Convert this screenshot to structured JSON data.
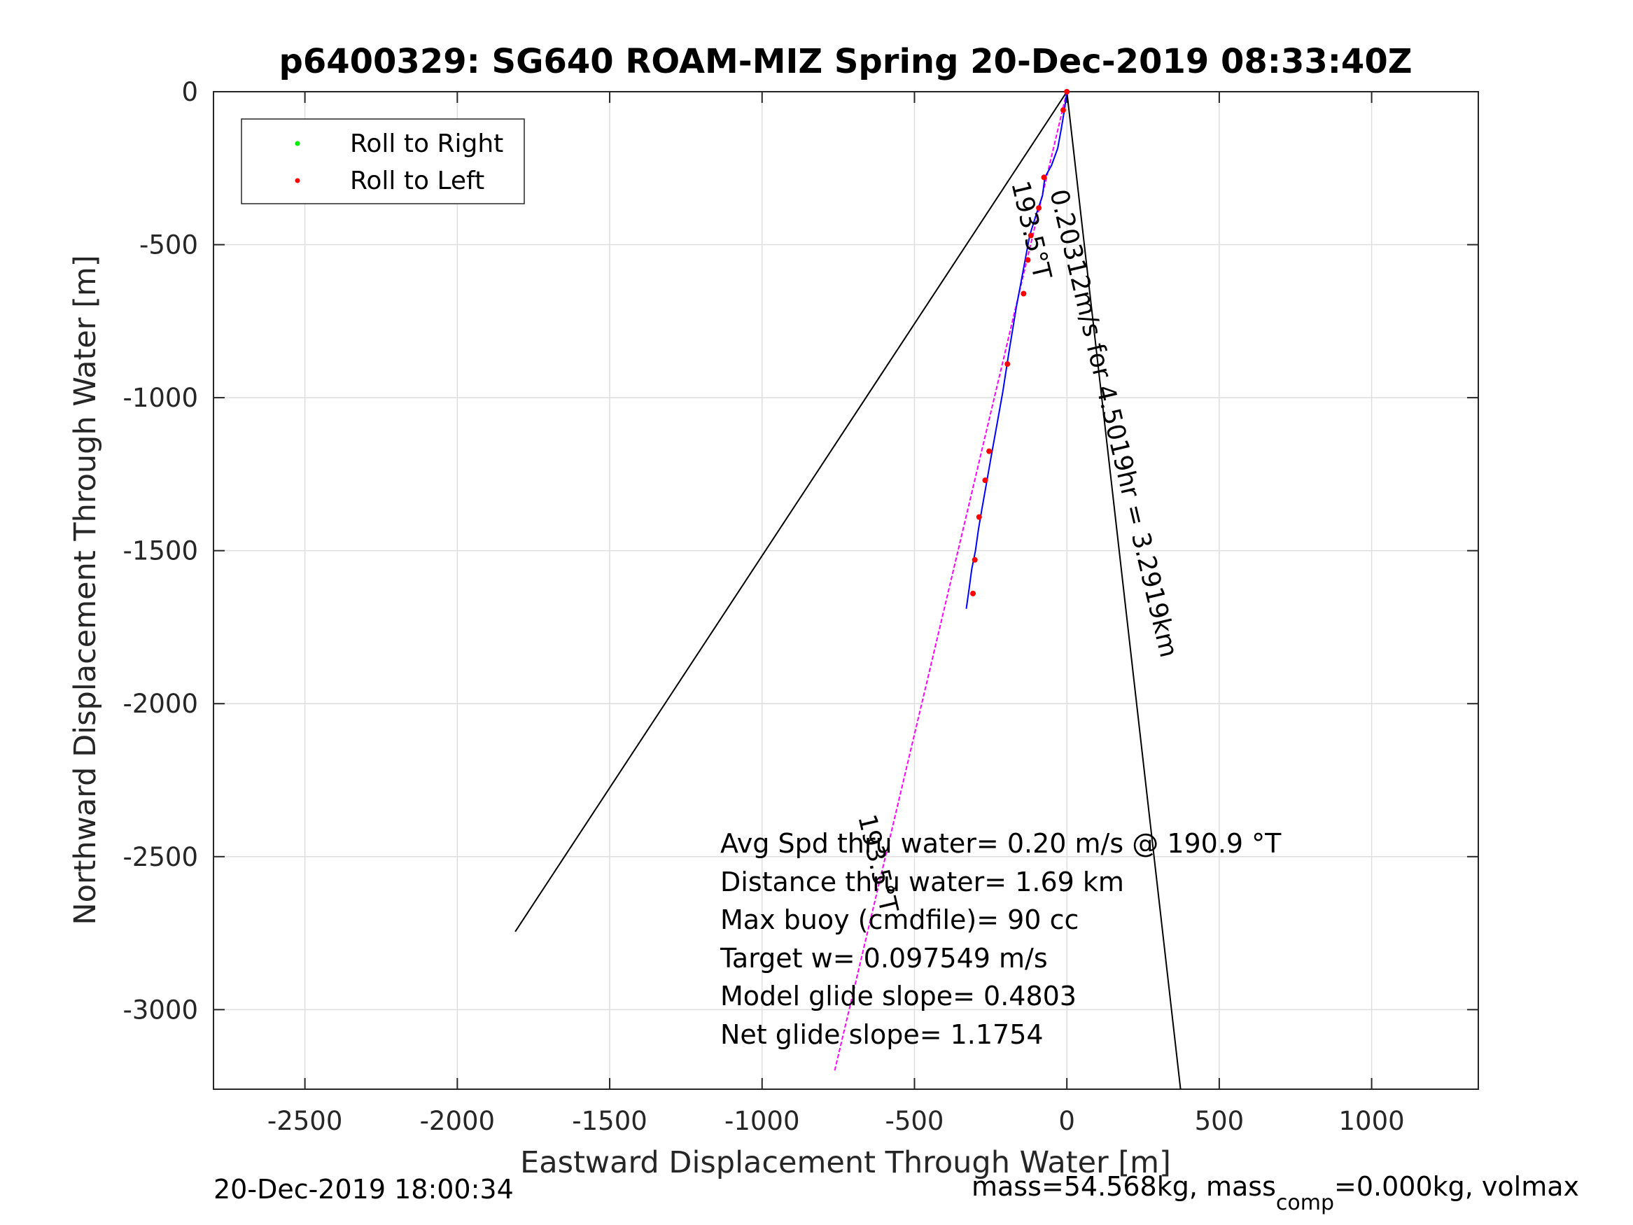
{
  "chart_data": {
    "type": "line",
    "title": "p6400329: SG640 ROAM-MIZ Spring 20-Dec-2019 08:33:40Z",
    "xlabel": "Eastward Displacement Through Water [m]",
    "ylabel": "Northward Displacement Through Water [m]",
    "xlim": [
      -2800,
      1350
    ],
    "ylim": [
      -3260,
      0
    ],
    "xticks": [
      -2500,
      -2000,
      -1500,
      -1000,
      -500,
      0,
      500,
      1000
    ],
    "yticks": [
      0,
      -500,
      -1000,
      -1500,
      -2000,
      -2500,
      -3000
    ],
    "grid": true,
    "legend": {
      "placement": "top-left",
      "entries": [
        {
          "label": "Roll to Right",
          "color": "#00ee00"
        },
        {
          "label": "Roll to Left",
          "color": "#ff0000"
        }
      ]
    },
    "series": [
      {
        "kind": "fan-line",
        "color": "#000000",
        "x": [
          0,
          -1810
        ],
        "y": [
          0,
          -2745
        ]
      },
      {
        "kind": "fan-line",
        "color": "#000000",
        "x": [
          0,
          373
        ],
        "y": [
          0,
          -3260
        ]
      },
      {
        "kind": "heading-line",
        "color": "#ff00ff",
        "x": [
          0,
          -762
        ],
        "y": [
          0,
          -3200
        ]
      },
      {
        "kind": "track",
        "color": "#0000ff",
        "x": [
          0,
          -8,
          -18,
          -30,
          -50,
          -72,
          -80,
          -100,
          -122,
          -135,
          -150,
          -165,
          -190,
          -210,
          -228,
          -248,
          -262,
          -278,
          -290,
          -300,
          -312,
          -320,
          -330
        ],
        "y": [
          0,
          -60,
          -120,
          -185,
          -240,
          -280,
          -340,
          -400,
          -470,
          -540,
          -620,
          -700,
          -850,
          -980,
          -1080,
          -1190,
          -1270,
          -1360,
          -1430,
          -1500,
          -1560,
          -1620,
          -1690
        ]
      }
    ],
    "roll_to_left_points": {
      "x": [
        0,
        -12,
        -75,
        -92,
        -118,
        -128,
        -142,
        -195,
        -255,
        -268,
        -288,
        -302,
        -308
      ],
      "y": [
        0,
        -60,
        -280,
        -380,
        -470,
        -550,
        -660,
        -890,
        -1175,
        -1270,
        -1390,
        -1530,
        -1640
      ]
    },
    "roll_to_right_points": {
      "x": [],
      "y": []
    },
    "annotations": {
      "heading_main": "193.5°T",
      "speed_distance": "0.20312m/s for 4.5019hr = 3.2919km",
      "heading_secondary": "193.5°T",
      "stats": [
        "Avg Spd thru water=  0.20 m/s @ 190.9 °T",
        "Distance thru water=  1.69 km",
        "Max buoy (cmdfile)= 90 cc",
        "Target w= 0.097549 m/s",
        "Model glide slope= 0.4803",
        "Net glide slope= 1.1754"
      ]
    }
  },
  "footer": {
    "timestamp": "20-Dec-2019 18:00:34",
    "mass_prefix": "mass=54.568kg, mass",
    "mass_sub": "comp",
    "mass_suffix": "=0.000kg, volmax"
  }
}
